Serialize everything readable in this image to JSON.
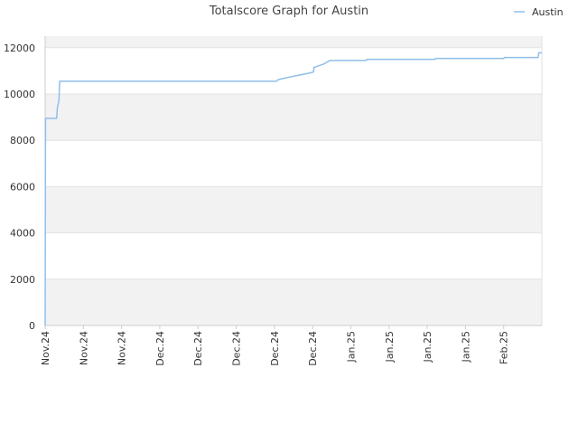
{
  "chart_data": {
    "type": "line",
    "title": "Totalscore Graph for Austin",
    "xlabel": "",
    "ylabel": "",
    "ylim": [
      0,
      12500
    ],
    "y_ticks": [
      0,
      2000,
      4000,
      6000,
      8000,
      10000,
      12000
    ],
    "x_tick_labels": [
      "Nov.24",
      "Nov.24",
      "Nov.24",
      "Dec.24",
      "Dec.24",
      "Dec.24",
      "Dec.24",
      "Dec.24",
      "Jan.25",
      "Jan.25",
      "Jan.25",
      "Jan.25",
      "Feb.25"
    ],
    "x_range": [
      0,
      13
    ],
    "grid": "horizontal alternating bands",
    "legend_position": "top-right",
    "series": [
      {
        "name": "Austin",
        "color": "#8fbfea",
        "points": [
          [
            0,
            0
          ],
          [
            0.01,
            8950
          ],
          [
            0.3,
            8950
          ],
          [
            0.32,
            9400
          ],
          [
            0.36,
            9700
          ],
          [
            0.38,
            10550
          ],
          [
            6.05,
            10550
          ],
          [
            6.1,
            10620
          ],
          [
            6.3,
            10700
          ],
          [
            6.6,
            10800
          ],
          [
            6.9,
            10900
          ],
          [
            7.02,
            10950
          ],
          [
            7.04,
            11150
          ],
          [
            7.3,
            11300
          ],
          [
            7.45,
            11450
          ],
          [
            8.4,
            11450
          ],
          [
            8.42,
            11500
          ],
          [
            10.2,
            11500
          ],
          [
            10.22,
            11540
          ],
          [
            12.0,
            11540
          ],
          [
            12.02,
            11580
          ],
          [
            12.9,
            11580
          ],
          [
            12.92,
            11780
          ],
          [
            13,
            11780
          ]
        ]
      }
    ]
  }
}
